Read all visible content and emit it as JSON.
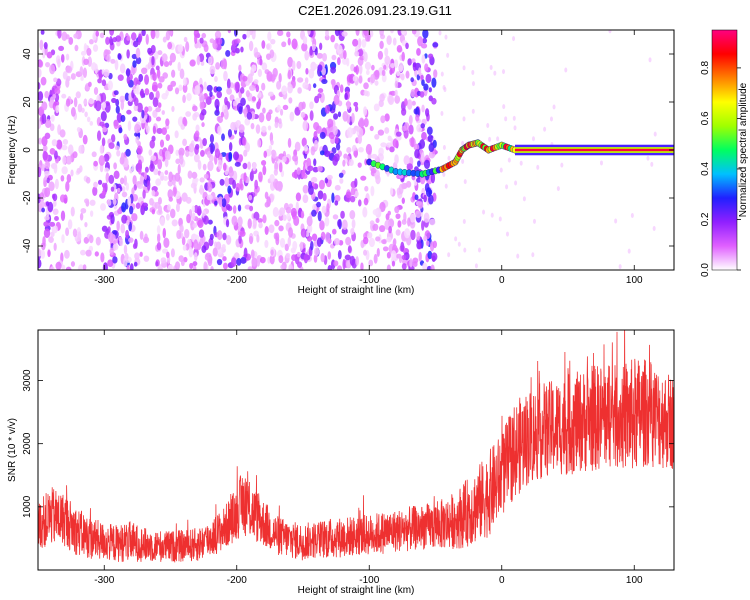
{
  "title": "C2E1.2026.091.23.19.G11",
  "chart_data": [
    {
      "type": "heatmap",
      "xlabel": "Height of straight line (km)",
      "ylabel": "Frequency (Hz)",
      "xlim": [
        -350,
        130
      ],
      "ylim": [
        -50,
        50
      ],
      "x_ticks": [
        -300,
        -200,
        -100,
        0,
        100
      ],
      "y_ticks": [
        -40,
        -20,
        0,
        20,
        40
      ],
      "colorbar": {
        "label": "Normalized spectral amplitude",
        "range": [
          0,
          0.95
        ],
        "ticks": [
          "0.0",
          "0.2",
          "0.4",
          "0.6",
          "0.8"
        ],
        "colors": [
          "#ffffff",
          "#e060ff",
          "#9020ff",
          "#2020ff",
          "#00c0ff",
          "#00ff60",
          "#a0ff00",
          "#ffff00",
          "#ff8000",
          "#ff0000",
          "#ff0080"
        ]
      },
      "features": [
        {
          "name": "scatter_noise",
          "x_range": [
            -350,
            -50
          ],
          "freq_range": [
            -50,
            50
          ],
          "typical_amplitude": 0.1
        },
        {
          "name": "signal_track",
          "points": [
            [
              -100,
              -5
            ],
            [
              -80,
              -9
            ],
            [
              -60,
              -10
            ],
            [
              -45,
              -8
            ],
            [
              -35,
              -5
            ],
            [
              -30,
              0
            ],
            [
              -25,
              2
            ],
            [
              -18,
              3
            ],
            [
              -10,
              0
            ],
            [
              0,
              2
            ],
            [
              10,
              0
            ],
            [
              130,
              0
            ]
          ],
          "amplitude": 0.9
        }
      ]
    },
    {
      "type": "line",
      "xlabel": "Height of straight line (km)",
      "ylabel": "SNR (10 * v/v)",
      "xlim": [
        -350,
        130
      ],
      "ylim": [
        0,
        3800
      ],
      "x_ticks": [
        -300,
        -200,
        -100,
        0,
        100
      ],
      "y_ticks": [
        1000,
        2000,
        3000
      ],
      "color": "#ee3030",
      "envelope": {
        "x": [
          -350,
          -340,
          -330,
          -320,
          -310,
          -300,
          -290,
          -280,
          -270,
          -260,
          -250,
          -240,
          -230,
          -220,
          -210,
          -200,
          -195,
          -190,
          -180,
          -170,
          -160,
          -150,
          -140,
          -130,
          -120,
          -110,
          -100,
          -90,
          -80,
          -70,
          -60,
          -50,
          -40,
          -30,
          -20,
          -10,
          0,
          10,
          20,
          30,
          40,
          50,
          60,
          70,
          80,
          90,
          100,
          110,
          120,
          130
        ],
        "mean": [
          700,
          850,
          800,
          600,
          500,
          450,
          420,
          450,
          400,
          380,
          370,
          380,
          400,
          500,
          650,
          900,
          1100,
          950,
          750,
          550,
          480,
          450,
          480,
          500,
          520,
          540,
          560,
          590,
          620,
          650,
          680,
          700,
          750,
          850,
          1000,
          1200,
          1500,
          1900,
          2100,
          2200,
          2250,
          2300,
          2350,
          2400,
          2450,
          2400,
          2450,
          2500,
          2400,
          2350
        ],
        "spread": [
          450,
          550,
          500,
          450,
          400,
          350,
          350,
          380,
          320,
          300,
          300,
          300,
          320,
          350,
          400,
          500,
          650,
          550,
          450,
          380,
          350,
          350,
          350,
          380,
          380,
          380,
          380,
          400,
          400,
          420,
          420,
          450,
          500,
          600,
          700,
          800,
          800,
          900,
          900,
          900,
          900,
          950,
          950,
          1000,
          1000,
          950,
          1100,
          1000,
          950,
          900
        ]
      }
    }
  ]
}
